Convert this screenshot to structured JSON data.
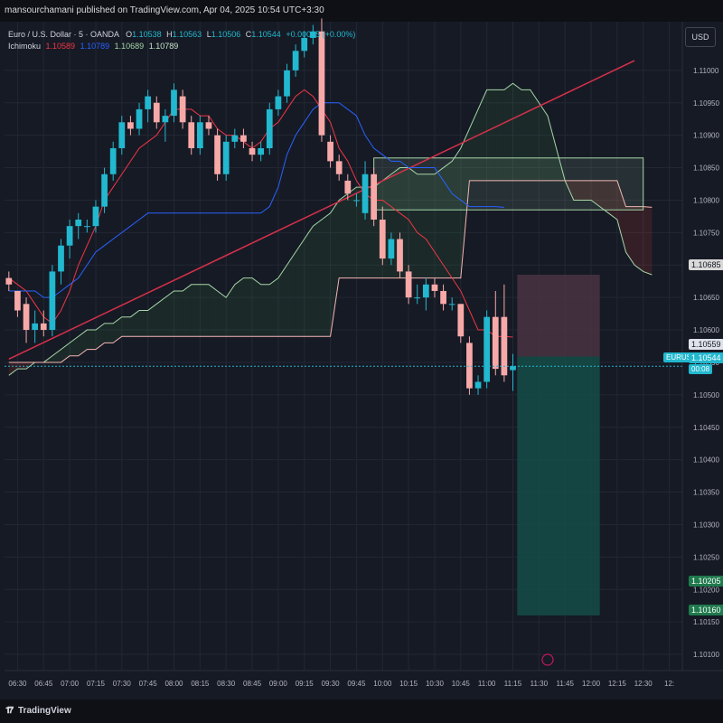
{
  "header": {
    "published_text": "mansourchamani published on TradingView.com, Apr 04, 2025 10:54 UTC+3:30"
  },
  "legend": {
    "symbol": "Euro / U.S. Dollar · 5 · OANDA",
    "open_label": "O",
    "open": "1.10538",
    "high_label": "H",
    "high": "1.10563",
    "low_label": "L",
    "low": "1.10506",
    "close_label": "C",
    "close": "1.10544",
    "change": "+0.00005 (+0.00%)",
    "indicator_name": "Ichimoku",
    "ichimoku_values": [
      "1.10589",
      "1.10789",
      "1.10689",
      "1.10789"
    ],
    "ichimoku_colors": [
      "#f23645",
      "#2962ff",
      "#a5d6a7",
      "#c8e6c9"
    ]
  },
  "currency_button": "USD",
  "price_tags": {
    "senkou_b": "1.10685",
    "stop_level": "1.10559",
    "symbol_tag": "EURUSD",
    "last_price": "1.10544",
    "countdown": "00:08",
    "tp_level_1": "1.10205",
    "tp_level_2": "1.10160"
  },
  "footer": {
    "brand": "TradingView"
  },
  "colors": {
    "background": "#161a25",
    "up_candle": "#22b8cf",
    "down_candle": "#f7a9a8",
    "tenkan": "#f23645",
    "kijun": "#2962ff",
    "span_a": "#a5d6a7",
    "span_b": "#f7b5b4",
    "trendline": "#d8304a",
    "tp_zone": "#144e48",
    "sl_zone": "#4a3443",
    "highlight_box": "#a5d6a7",
    "last_price_line": "#22b8cf"
  },
  "chart_data": {
    "type": "candlestick",
    "x_tick_labels": [
      "06:30",
      "06:45",
      "07:00",
      "07:15",
      "07:30",
      "07:45",
      "08:00",
      "08:15",
      "08:30",
      "08:45",
      "09:00",
      "09:15",
      "09:30",
      "09:45",
      "10:00",
      "10:15",
      "10:30",
      "10:45",
      "11:00",
      "11:15",
      "11:30",
      "11:45",
      "12:00",
      "12:15",
      "12:30",
      "12:"
    ],
    "y_tick_labels": [
      "1.11000",
      "1.10950",
      "1.10900",
      "1.10850",
      "1.10800",
      "1.10750",
      "1.10700",
      "1.10650",
      "1.10600",
      "1.10550",
      "1.10500",
      "1.10450",
      "1.10400",
      "1.10350",
      "1.10300",
      "1.10250",
      "1.10200",
      "1.10150",
      "1.10100"
    ],
    "y_range": [
      1.10075,
      1.11075
    ],
    "x_start": "06:25",
    "bar_minutes": 5,
    "bars_total": 78,
    "candles": [
      {
        "o": 1.1068,
        "h": 1.1069,
        "l": 1.1066,
        "c": 1.1067
      },
      {
        "o": 1.1066,
        "h": 1.1066,
        "l": 1.1062,
        "c": 1.1063
      },
      {
        "o": 1.1064,
        "h": 1.1065,
        "l": 1.1058,
        "c": 1.106
      },
      {
        "o": 1.106,
        "h": 1.1063,
        "l": 1.1058,
        "c": 1.1061
      },
      {
        "o": 1.1061,
        "h": 1.1063,
        "l": 1.1059,
        "c": 1.106
      },
      {
        "o": 1.106,
        "h": 1.107,
        "l": 1.1059,
        "c": 1.1069
      },
      {
        "o": 1.1069,
        "h": 1.1074,
        "l": 1.1067,
        "c": 1.1073
      },
      {
        "o": 1.1073,
        "h": 1.1077,
        "l": 1.1071,
        "c": 1.1076
      },
      {
        "o": 1.1076,
        "h": 1.1078,
        "l": 1.1074,
        "c": 1.1077
      },
      {
        "o": 1.1076,
        "h": 1.1077,
        "l": 1.1075,
        "c": 1.1076
      },
      {
        "o": 1.1076,
        "h": 1.108,
        "l": 1.1075,
        "c": 1.1079
      },
      {
        "o": 1.1079,
        "h": 1.1085,
        "l": 1.1078,
        "c": 1.1084
      },
      {
        "o": 1.1084,
        "h": 1.1089,
        "l": 1.1083,
        "c": 1.1088
      },
      {
        "o": 1.1088,
        "h": 1.1093,
        "l": 1.1087,
        "c": 1.1092
      },
      {
        "o": 1.1092,
        "h": 1.1093,
        "l": 1.109,
        "c": 1.1091
      },
      {
        "o": 1.1091,
        "h": 1.1095,
        "l": 1.109,
        "c": 1.1094
      },
      {
        "o": 1.1094,
        "h": 1.1097,
        "l": 1.1092,
        "c": 1.1096
      },
      {
        "o": 1.1095,
        "h": 1.1096,
        "l": 1.1091,
        "c": 1.1092
      },
      {
        "o": 1.1092,
        "h": 1.1094,
        "l": 1.1089,
        "c": 1.1093
      },
      {
        "o": 1.1093,
        "h": 1.1098,
        "l": 1.1092,
        "c": 1.1097
      },
      {
        "o": 1.1096,
        "h": 1.1097,
        "l": 1.1091,
        "c": 1.1092
      },
      {
        "o": 1.1092,
        "h": 1.1093,
        "l": 1.1087,
        "c": 1.1088
      },
      {
        "o": 1.1088,
        "h": 1.1093,
        "l": 1.1087,
        "c": 1.1092
      },
      {
        "o": 1.1092,
        "h": 1.1093,
        "l": 1.109,
        "c": 1.1091
      },
      {
        "o": 1.109,
        "h": 1.1091,
        "l": 1.1083,
        "c": 1.1084
      },
      {
        "o": 1.1084,
        "h": 1.109,
        "l": 1.1083,
        "c": 1.1089
      },
      {
        "o": 1.1089,
        "h": 1.1091,
        "l": 1.1088,
        "c": 1.109
      },
      {
        "o": 1.109,
        "h": 1.1091,
        "l": 1.1088,
        "c": 1.1089
      },
      {
        "o": 1.1088,
        "h": 1.1089,
        "l": 1.1086,
        "c": 1.1087
      },
      {
        "o": 1.1087,
        "h": 1.1089,
        "l": 1.1086,
        "c": 1.1088
      },
      {
        "o": 1.1088,
        "h": 1.1095,
        "l": 1.1087,
        "c": 1.1094
      },
      {
        "o": 1.1094,
        "h": 1.1097,
        "l": 1.1093,
        "c": 1.1096
      },
      {
        "o": 1.1096,
        "h": 1.1101,
        "l": 1.1095,
        "c": 1.11
      },
      {
        "o": 1.11,
        "h": 1.1104,
        "l": 1.1099,
        "c": 1.1103
      },
      {
        "o": 1.1103,
        "h": 1.1106,
        "l": 1.1102,
        "c": 1.1105
      },
      {
        "o": 1.1105,
        "h": 1.1107,
        "l": 1.1104,
        "c": 1.1106
      },
      {
        "o": 1.1106,
        "h": 1.1108,
        "l": 1.1089,
        "c": 1.109
      },
      {
        "o": 1.1089,
        "h": 1.109,
        "l": 1.1085,
        "c": 1.1086
      },
      {
        "o": 1.1086,
        "h": 1.1087,
        "l": 1.1083,
        "c": 1.1084
      },
      {
        "o": 1.1083,
        "h": 1.1084,
        "l": 1.108,
        "c": 1.1081
      },
      {
        "o": 1.108,
        "h": 1.1081,
        "l": 1.1079,
        "c": 1.108
      },
      {
        "o": 1.1078,
        "h": 1.1086,
        "l": 1.1077,
        "c": 1.1084
      },
      {
        "o": 1.1084,
        "h": 1.1085,
        "l": 1.1076,
        "c": 1.1077
      },
      {
        "o": 1.1077,
        "h": 1.1079,
        "l": 1.107,
        "c": 1.1071
      },
      {
        "o": 1.1071,
        "h": 1.1075,
        "l": 1.107,
        "c": 1.1074
      },
      {
        "o": 1.1074,
        "h": 1.1075,
        "l": 1.1068,
        "c": 1.1069
      },
      {
        "o": 1.1069,
        "h": 1.107,
        "l": 1.1064,
        "c": 1.1065
      },
      {
        "o": 1.1065,
        "h": 1.1067,
        "l": 1.1064,
        "c": 1.1065
      },
      {
        "o": 1.1065,
        "h": 1.1068,
        "l": 1.1063,
        "c": 1.1067
      },
      {
        "o": 1.1067,
        "h": 1.1068,
        "l": 1.1065,
        "c": 1.1066
      },
      {
        "o": 1.1066,
        "h": 1.1067,
        "l": 1.1063,
        "c": 1.1064
      },
      {
        "o": 1.1064,
        "h": 1.1065,
        "l": 1.1063,
        "c": 1.1064
      },
      {
        "o": 1.1064,
        "h": 1.1064,
        "l": 1.1058,
        "c": 1.1059
      },
      {
        "o": 1.1058,
        "h": 1.1059,
        "l": 1.105,
        "c": 1.1051
      },
      {
        "o": 1.1051,
        "h": 1.1053,
        "l": 1.105,
        "c": 1.1052
      },
      {
        "o": 1.1052,
        "h": 1.1063,
        "l": 1.1051,
        "c": 1.1062
      },
      {
        "o": 1.1062,
        "h": 1.1066,
        "l": 1.1053,
        "c": 1.1054
      },
      {
        "o": 1.1062,
        "h": 1.1067,
        "l": 1.1052,
        "c": 1.1053
      },
      {
        "o": 1.10538,
        "h": 1.10563,
        "l": 1.10506,
        "c": 1.10544
      }
    ],
    "tenkan": [
      1.1068,
      1.1067,
      1.1066,
      1.1064,
      1.1062,
      1.1061,
      1.1063,
      1.1066,
      1.107,
      1.1073,
      1.1076,
      1.108,
      1.1082,
      1.1084,
      1.1086,
      1.1088,
      1.1089,
      1.109,
      1.1092,
      1.1094,
      1.1094,
      1.1094,
      1.1093,
      1.1093,
      1.1091,
      1.109,
      1.109,
      1.1089,
      1.1088,
      1.1089,
      1.1091,
      1.1092,
      1.1094,
      1.1096,
      1.1097,
      1.1096,
      1.1094,
      1.1092,
      1.1088,
      1.1086,
      1.1083,
      1.1081,
      1.108,
      1.108,
      1.1079,
      1.1078,
      1.1077,
      1.1075,
      1.1074,
      1.1072,
      1.107,
      1.1068,
      1.1066,
      1.1063,
      1.106,
      1.106,
      1.1059,
      1.1059,
      1.10589
    ],
    "kijun": [
      1.1066,
      1.1066,
      1.1066,
      1.1066,
      1.1065,
      1.1065,
      1.1066,
      1.1067,
      1.1068,
      1.107,
      1.1072,
      1.1073,
      1.1074,
      1.1075,
      1.1076,
      1.1077,
      1.1078,
      1.1078,
      1.1078,
      1.1078,
      1.1078,
      1.1078,
      1.1078,
      1.1078,
      1.1078,
      1.1078,
      1.1078,
      1.1078,
      1.1078,
      1.1078,
      1.1079,
      1.1082,
      1.1087,
      1.109,
      1.1092,
      1.1094,
      1.1095,
      1.1095,
      1.1095,
      1.1094,
      1.1093,
      1.109,
      1.1088,
      1.1087,
      1.1086,
      1.1086,
      1.1085,
      1.1085,
      1.1085,
      1.1085,
      1.1083,
      1.1081,
      1.108,
      1.1079,
      1.1079,
      1.1079,
      1.1079,
      1.10789
    ],
    "span_a": [
      1.1053,
      1.1054,
      1.1054,
      1.1055,
      1.1055,
      1.1056,
      1.1057,
      1.1058,
      1.1059,
      1.106,
      1.106,
      1.1061,
      1.1061,
      1.1062,
      1.1062,
      1.1063,
      1.1063,
      1.1064,
      1.1065,
      1.1066,
      1.1066,
      1.1067,
      1.1067,
      1.1067,
      1.1066,
      1.1065,
      1.1067,
      1.1068,
      1.1068,
      1.1067,
      1.1067,
      1.1068,
      1.107,
      1.1072,
      1.1074,
      1.1076,
      1.1077,
      1.1078,
      1.108,
      1.1081,
      1.1082,
      1.1082,
      1.1082,
      1.1083,
      1.1084,
      1.1085,
      1.1085,
      1.1084,
      1.1084,
      1.1084,
      1.1085,
      1.1086,
      1.1088,
      1.1091,
      1.1094,
      1.1097,
      1.1097,
      1.1097,
      1.1098,
      1.1097,
      1.1097,
      1.1095,
      1.1093,
      1.1088,
      1.1083,
      1.108,
      1.108,
      1.108,
      1.1079,
      1.1078,
      1.1077,
      1.1072,
      1.107,
      1.1069,
      1.10685
    ],
    "span_b": [
      1.1054,
      1.1054,
      1.1054,
      1.1054,
      1.1054,
      1.1054,
      1.1054,
      1.1055,
      1.1055,
      1.1055,
      1.1055,
      1.1055,
      1.1055,
      1.1055,
      1.1055,
      1.1055,
      1.1059,
      1.1059,
      1.1059,
      1.1059,
      1.1059,
      1.1059,
      1.1059,
      1.1059,
      1.1059,
      1.1059,
      1.1059,
      1.1059,
      1.1059,
      1.1059,
      1.1059,
      1.1059,
      1.1059,
      1.1059,
      1.1059,
      1.1059,
      1.1059,
      1.1059,
      1.1059,
      1.1059,
      1.1059,
      1.1059,
      1.1059,
      1.1059,
      1.1059,
      1.1059,
      1.1059,
      1.1059,
      1.1059,
      1.1059,
      1.1059,
      1.1059,
      1.1059,
      1.1059,
      1.1059,
      1.1059,
      1.1059,
      1.1059,
      1.1059,
      1.1059,
      1.1059,
      1.1059,
      1.1059,
      1.1059,
      1.1059,
      1.1059,
      1.1059,
      1.1059,
      1.1059,
      1.1059,
      1.1059,
      1.1059,
      1.1059,
      1.1059,
      1.1059
    ],
    "span_b_flat": [
      1.1055,
      1.1055,
      1.1055,
      1.1055,
      1.1055,
      1.1055,
      1.1055,
      1.1056,
      1.1056,
      1.1057,
      1.1057,
      1.1058,
      1.1058,
      1.1059,
      1.1059,
      1.1059,
      1.1059,
      1.1059,
      1.1059,
      1.1059,
      1.1059,
      1.1059,
      1.1059,
      1.1059,
      1.1059,
      1.1059,
      1.1059,
      1.1059,
      1.1059,
      1.1059,
      1.1059,
      1.1059,
      1.1059,
      1.1059,
      1.1059,
      1.1059,
      1.1059,
      1.1059,
      1.1068,
      1.1068,
      1.1068,
      1.1068,
      1.1068,
      1.1068,
      1.1068,
      1.1068,
      1.1068,
      1.1068,
      1.1068,
      1.1068,
      1.1068,
      1.1068,
      1.1068,
      1.1083,
      1.1083,
      1.1083,
      1.1083,
      1.1083,
      1.1083,
      1.1083,
      1.1083,
      1.1083,
      1.1083,
      1.1083,
      1.1083,
      1.1083,
      1.1083,
      1.1083,
      1.1083,
      1.1083,
      1.1083,
      1.1079,
      1.1079,
      1.1079,
      1.10789
    ],
    "trendline": {
      "start": {
        "bar": 0,
        "price": 1.10555
      },
      "end": {
        "bar": 72,
        "price": 1.11015
      }
    },
    "highlight_zone": {
      "bar_start": 42,
      "bar_end": 73,
      "price_top": 1.10865,
      "price_bottom": 1.10785
    },
    "position": {
      "bar_start": 58.5,
      "bar_end": 68,
      "entry": 1.10559,
      "stop": 1.10685,
      "target": 1.1016
    },
    "last_price": 1.10544
  }
}
